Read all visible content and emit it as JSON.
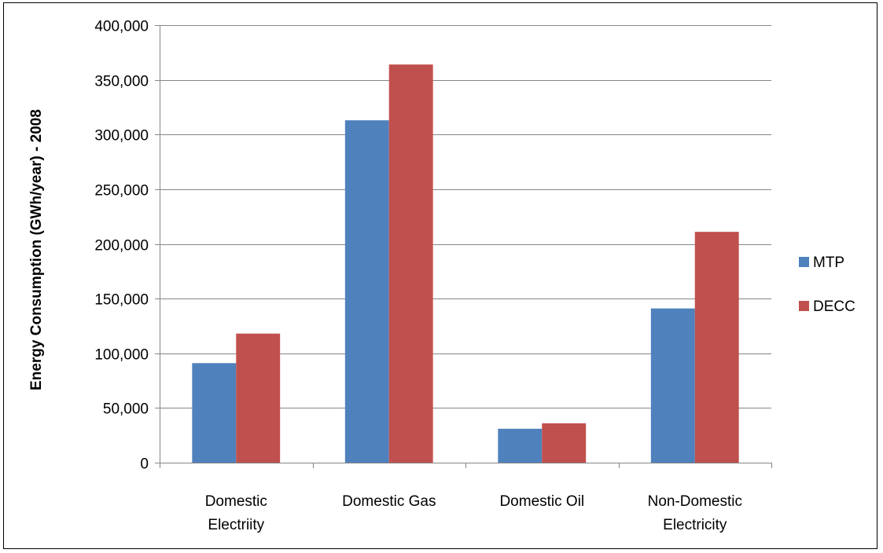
{
  "chart_data": {
    "type": "bar",
    "categories": [
      [
        "Domestic",
        "Electriity"
      ],
      [
        "Domestic Gas"
      ],
      [
        "Domestic Oil"
      ],
      [
        "Non-Domestic",
        "Electricity"
      ]
    ],
    "series": [
      {
        "name": "MTP",
        "color": "#4f81bd",
        "values": [
          91000,
          313000,
          31000,
          141000
        ]
      },
      {
        "name": "DECC",
        "color": "#c0504d",
        "values": [
          118000,
          364000,
          36000,
          211000
        ]
      }
    ],
    "ylabel": "Energy Consumption (GWh/year) - 2008",
    "xlabel": "",
    "ylim": [
      0,
      400000
    ],
    "yticks": [
      0,
      50000,
      100000,
      150000,
      200000,
      250000,
      300000,
      350000,
      400000
    ],
    "ytick_labels": [
      "0",
      "50,000",
      "100,000",
      "150,000",
      "200,000",
      "250,000",
      "300,000",
      "350,000",
      "400,000"
    ],
    "grid": true,
    "legend_position": "right"
  }
}
